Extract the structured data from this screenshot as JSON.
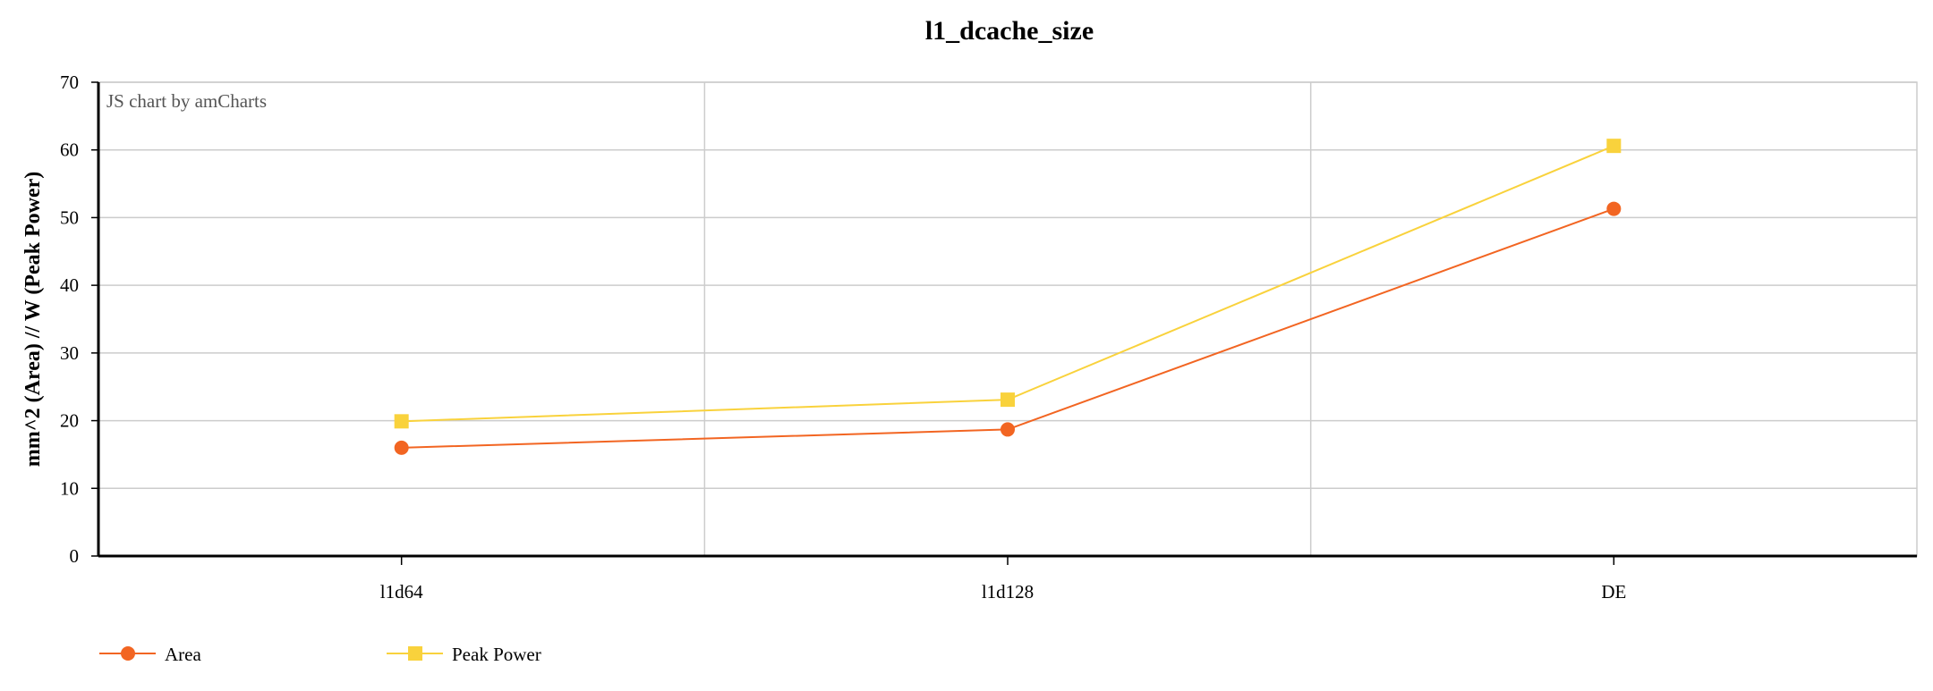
{
  "chart_data": {
    "type": "line",
    "title": "l1_dcache_size",
    "xlabel": "",
    "ylabel": "mm^2 (Area) // W (Peak Power)",
    "categories": [
      "l1d64",
      "l1d128",
      "DE"
    ],
    "ylim": [
      0,
      70
    ],
    "yticks": [
      0,
      10,
      20,
      30,
      40,
      50,
      60,
      70
    ],
    "grid": true,
    "legend_position": "bottom-left",
    "credit": "JS chart by amCharts",
    "series": [
      {
        "name": "Area",
        "color": "#f26522",
        "marker": "circle",
        "values": [
          16,
          18.7,
          51.3
        ]
      },
      {
        "name": "Peak Power",
        "color": "#f9d23c",
        "marker": "square",
        "values": [
          19.9,
          23.1,
          60.6
        ]
      }
    ]
  }
}
